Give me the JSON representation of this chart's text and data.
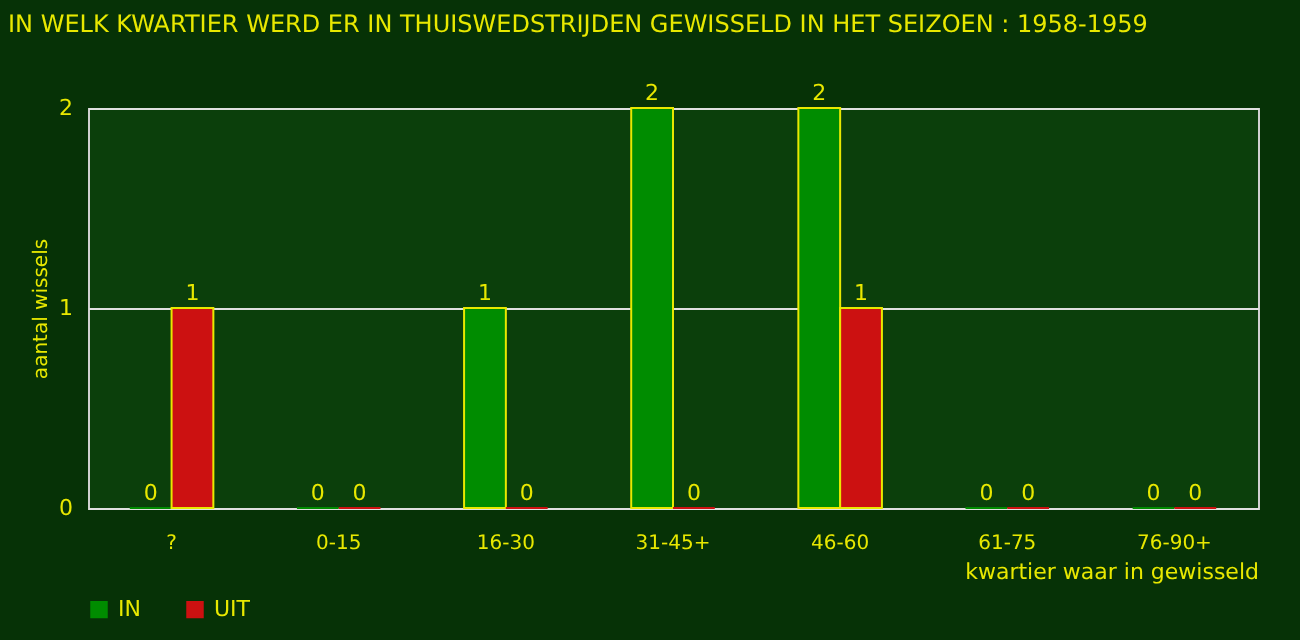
{
  "chart_data": {
    "type": "bar",
    "title": "IN WELK KWARTIER WERD ER IN THUISWEDSTRIJDEN GEWISSELD IN HET SEIZOEN : 1958-1959",
    "xlabel": "kwartier waar in gewisseld",
    "ylabel": "aantal wissels",
    "categories": [
      "?",
      "0-15",
      "16-30",
      "31-45+",
      "46-60",
      "61-75",
      "76-90+"
    ],
    "series": [
      {
        "name": "IN",
        "color": "#008c00",
        "values": [
          0,
          0,
          1,
          2,
          2,
          0,
          0
        ]
      },
      {
        "name": "UIT",
        "color": "#cc1111",
        "values": [
          1,
          0,
          0,
          0,
          1,
          0,
          0
        ]
      }
    ],
    "ylim": [
      0,
      2
    ],
    "yticks": [
      0,
      1,
      2
    ],
    "grid": "y",
    "legend": "bottom",
    "data_labels": true
  }
}
